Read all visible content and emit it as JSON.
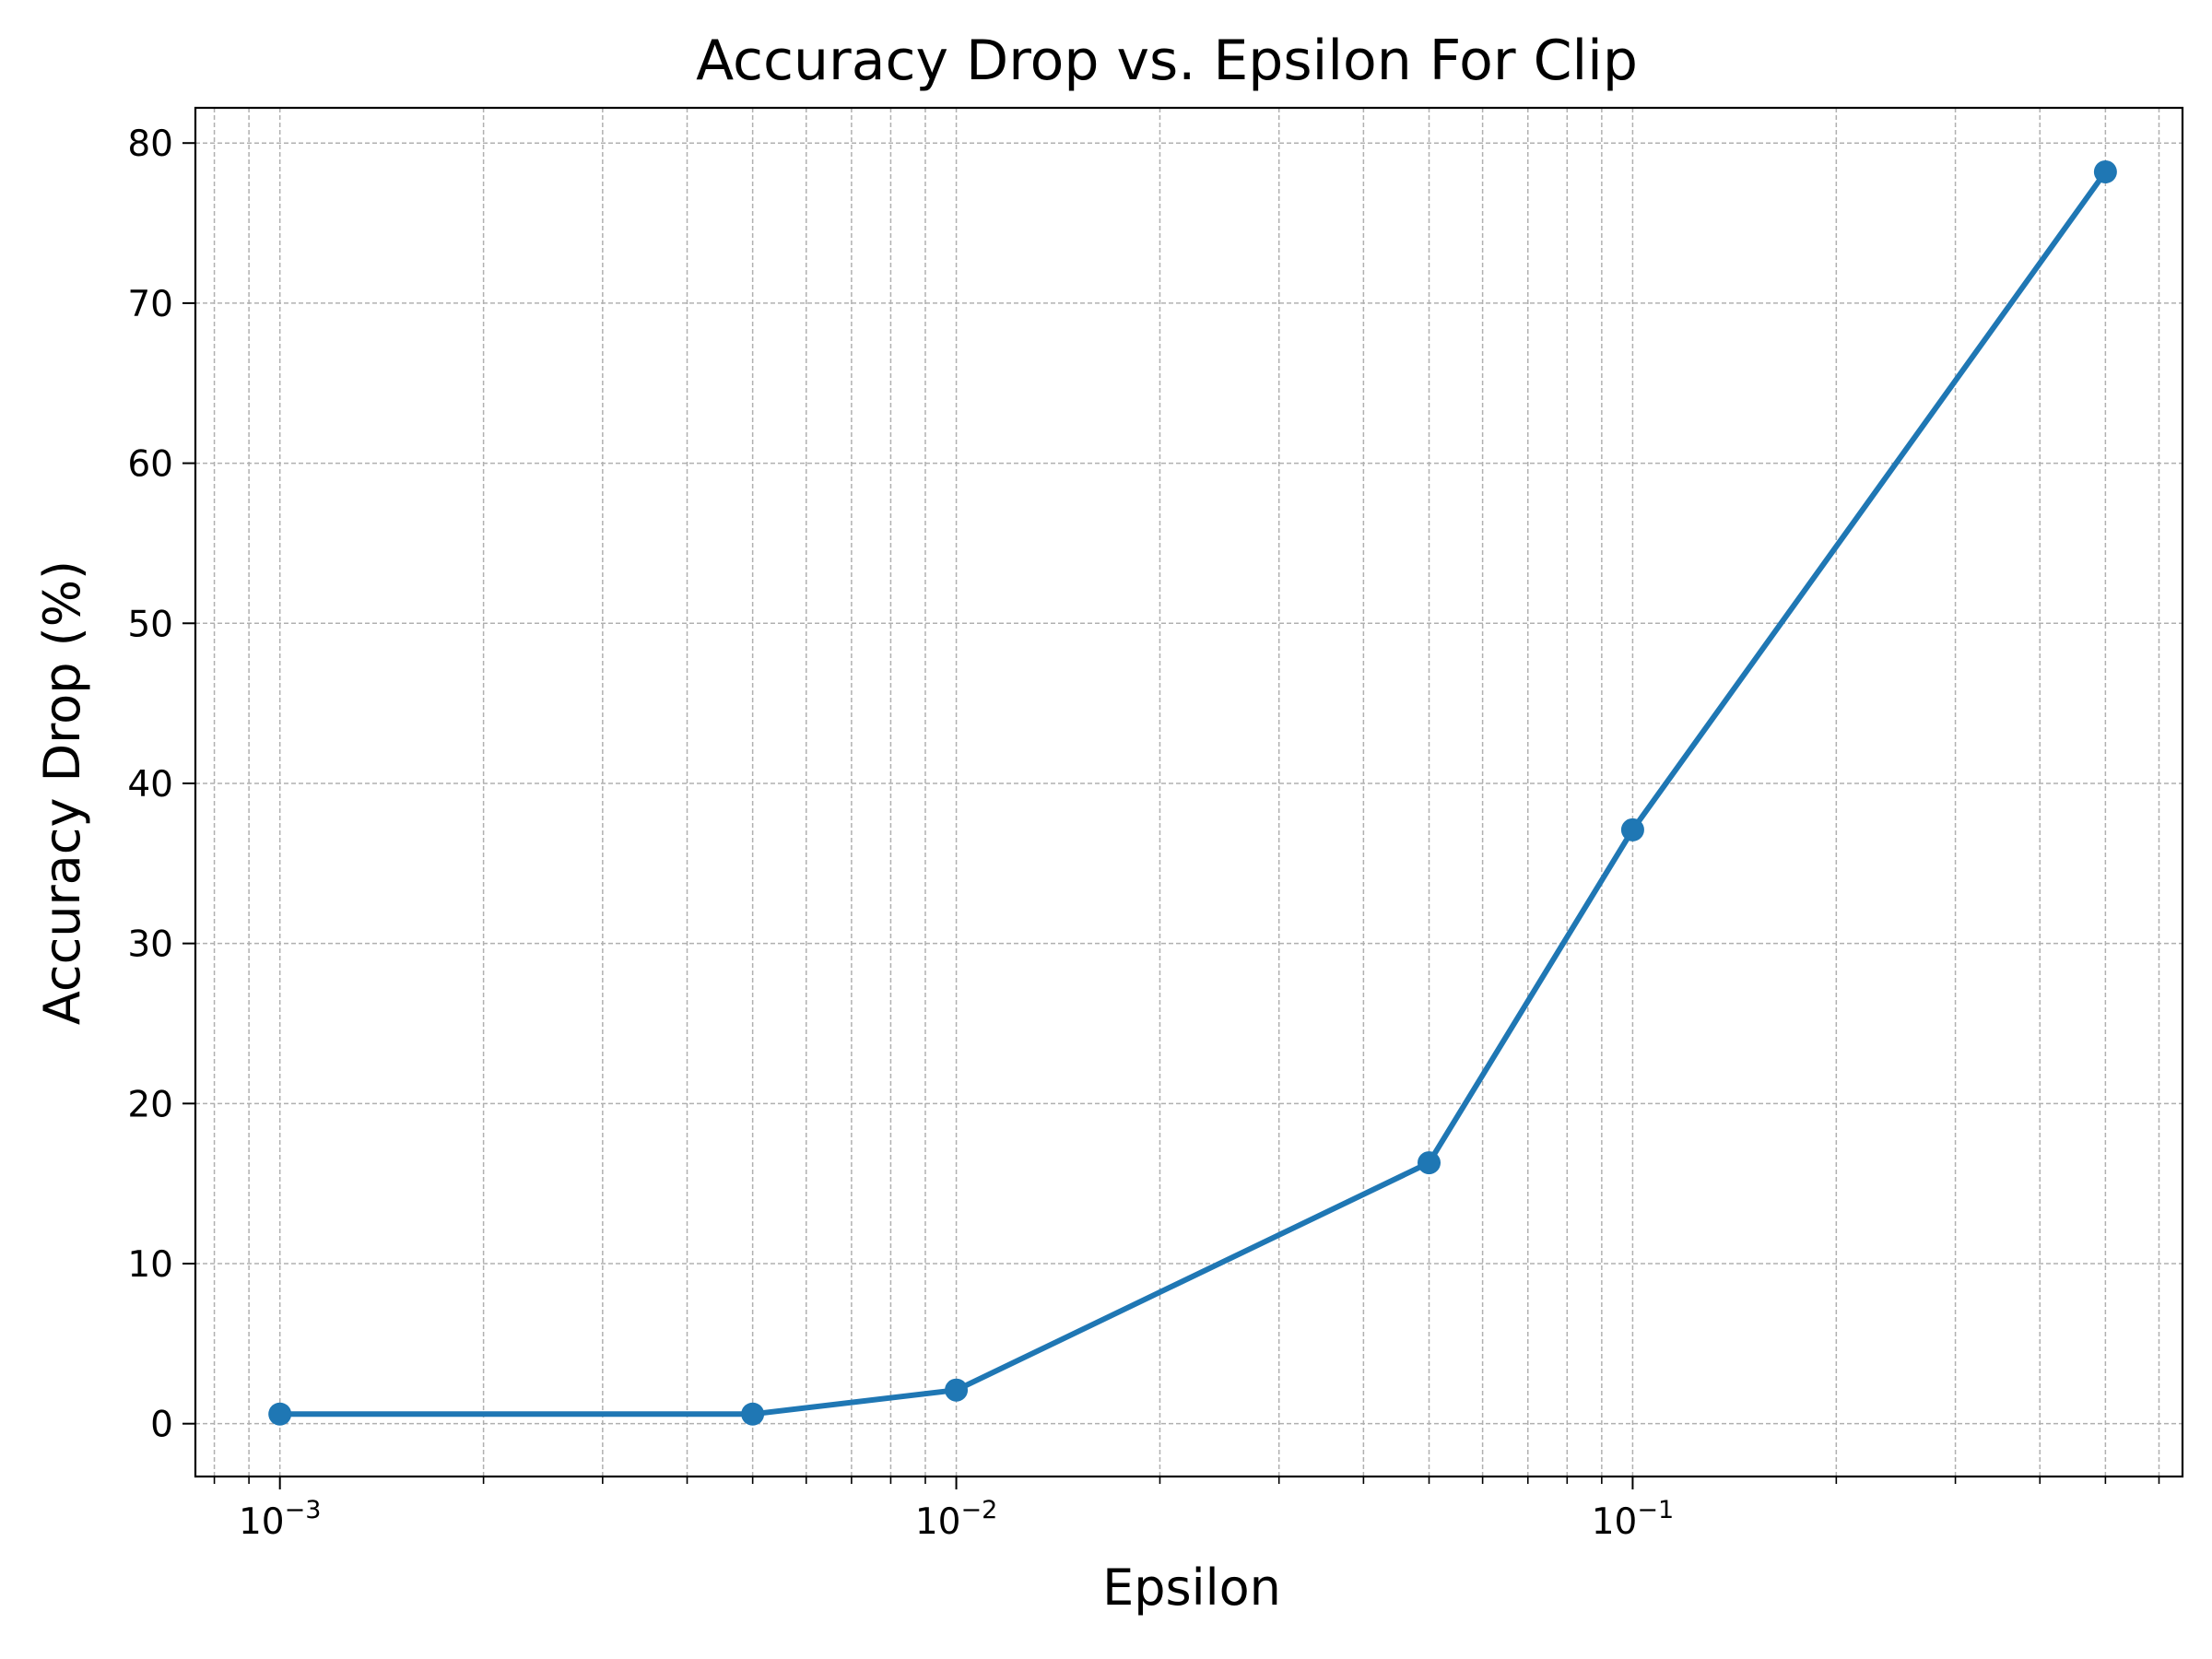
{
  "chart_data": {
    "type": "line",
    "title": "Accuracy Drop vs. Epsilon For Clip",
    "xlabel": "Epsilon",
    "ylabel": "Accuracy Drop (%)",
    "xscale": "log",
    "xlim": [
      0.00075,
      0.65
    ],
    "ylim": [
      -3.3,
      82.2
    ],
    "grid": true,
    "legend": "none",
    "x_ticks": [
      {
        "base": "10",
        "exp": "−3",
        "value": 0.001
      },
      {
        "base": "10",
        "exp": "−2",
        "value": 0.01
      },
      {
        "base": "10",
        "exp": "−1",
        "value": 0.1
      }
    ],
    "y_ticks": [
      "0",
      "10",
      "20",
      "30",
      "40",
      "50",
      "60",
      "70",
      "80"
    ],
    "series": [
      {
        "x": [
          0.001,
          0.005,
          0.01,
          0.05,
          0.1,
          0.5
        ],
        "y": [
          0.6,
          0.6,
          2.1,
          16.3,
          37.1,
          78.2
        ],
        "color": "#1f77b4",
        "marker": "circle"
      }
    ]
  }
}
